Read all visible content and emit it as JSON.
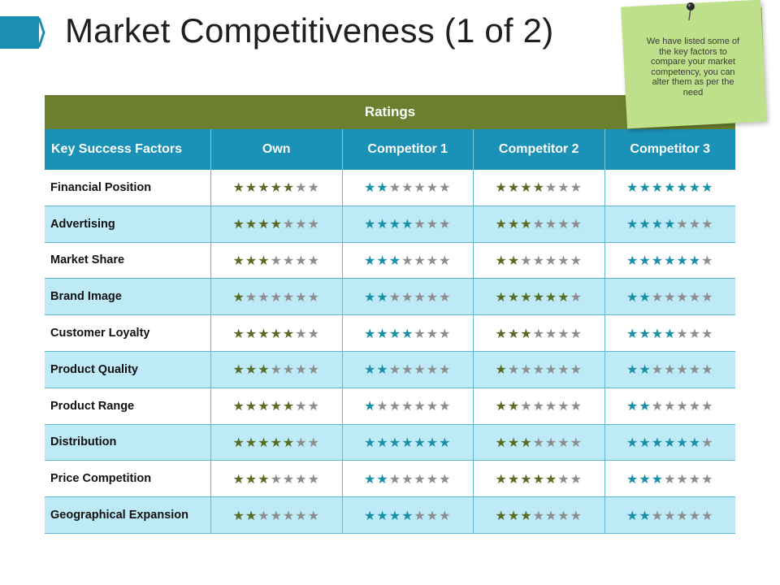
{
  "slide": {
    "title": "Market Competitiveness (1 of 2)"
  },
  "note": {
    "text": "We have listed some of the key factors to compare your market competency, you can alter them as per the need"
  },
  "table": {
    "ratings_label": "Ratings",
    "headers": [
      "Key Success Factors",
      "Own",
      "Competitor 1",
      "Competitor 2",
      "Competitor 3"
    ],
    "max_stars": 7,
    "colors": {
      "ratings_bg": "#6b7f2e",
      "header_bg": "#1a92b8",
      "alt_row_bg": "#bdeaf6",
      "star_olive": "#5a6b26",
      "star_teal": "#1a8fa8",
      "star_empty": "#8d8d8d"
    },
    "rows": [
      {
        "factor": "Financial Position",
        "ratings": [
          5,
          2,
          4,
          7
        ]
      },
      {
        "factor": "Advertising",
        "ratings": [
          4,
          4,
          3,
          4
        ]
      },
      {
        "factor": "Market Share",
        "ratings": [
          3,
          3,
          2,
          6
        ]
      },
      {
        "factor": "Brand Image",
        "ratings": [
          1,
          2,
          6,
          2
        ]
      },
      {
        "factor": "Customer Loyalty",
        "ratings": [
          5,
          4,
          3,
          4
        ]
      },
      {
        "factor": "Product Quality",
        "ratings": [
          3,
          2,
          1,
          2
        ]
      },
      {
        "factor": "Product Range",
        "ratings": [
          5,
          1,
          2,
          2
        ]
      },
      {
        "factor": "Distribution",
        "ratings": [
          5,
          7,
          3,
          6
        ]
      },
      {
        "factor": "Price Competition",
        "ratings": [
          3,
          2,
          5,
          3
        ]
      },
      {
        "factor": "Geographical Expansion",
        "ratings": [
          2,
          4,
          3,
          2
        ]
      }
    ]
  }
}
